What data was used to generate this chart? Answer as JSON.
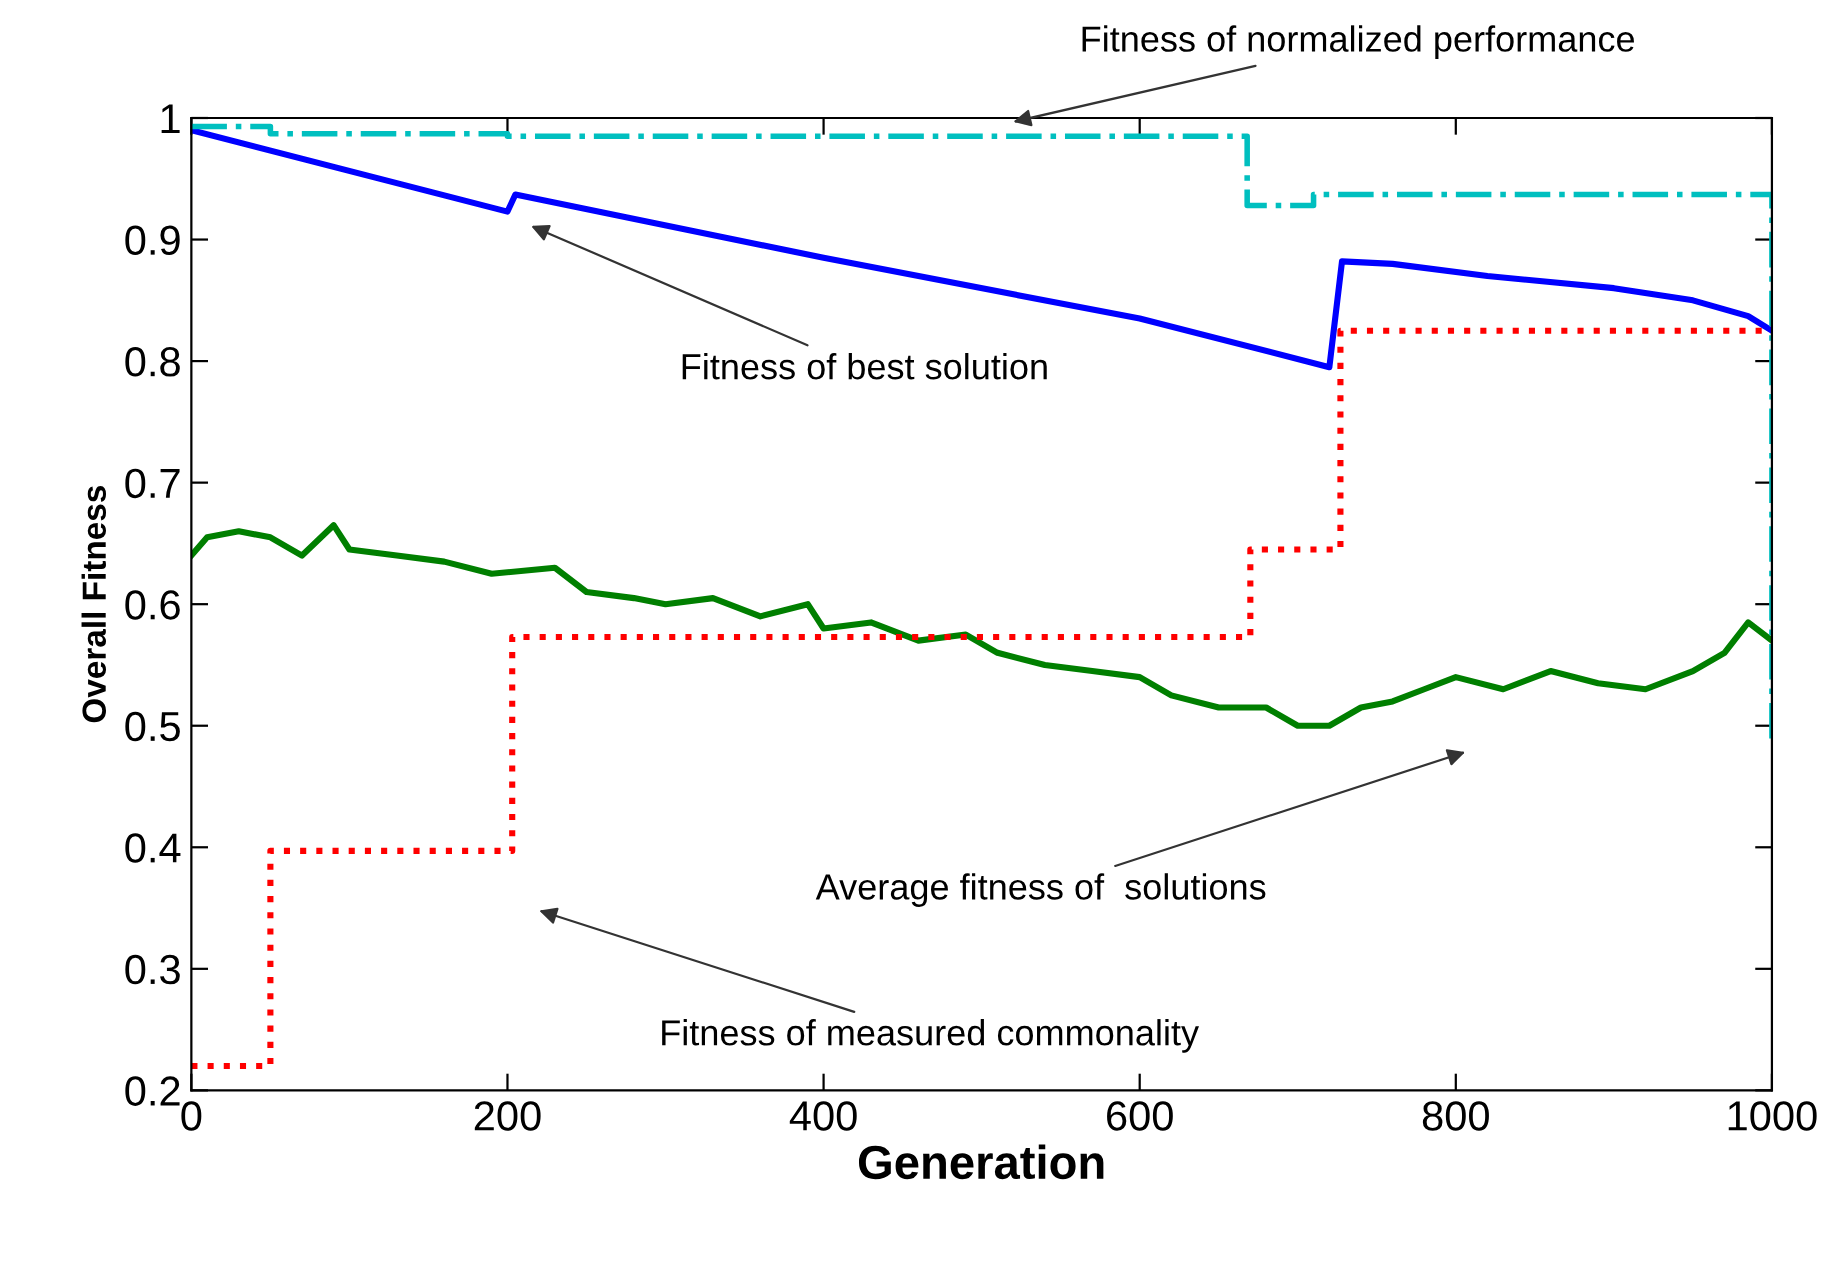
{
  "chart_data": {
    "type": "line",
    "xlabel": "Generation",
    "ylabel": "Overall Fitness",
    "xlim": [
      0,
      1000
    ],
    "ylim": [
      0.2,
      1
    ],
    "xticks": [
      0,
      200,
      400,
      600,
      800,
      1000
    ],
    "yticks": [
      0.2,
      0.3,
      0.4,
      0.5,
      0.6,
      0.7,
      0.8,
      0.9,
      1
    ],
    "grid": false,
    "series": [
      {
        "color": "#0000ff",
        "line_style": "solid",
        "x": [
          0,
          200,
          205,
          400,
          600,
          720,
          728,
          760,
          820,
          900,
          950,
          985,
          1000
        ],
        "values": [
          0.99,
          0.923,
          0.937,
          0.885,
          0.835,
          0.795,
          0.882,
          0.88,
          0.87,
          0.86,
          0.85,
          0.837,
          0.825
        ]
      },
      {
        "color": "#007f00",
        "line_style": "solid",
        "x": [
          0,
          10,
          30,
          50,
          70,
          90,
          100,
          130,
          160,
          190,
          230,
          250,
          280,
          300,
          330,
          360,
          390,
          400,
          430,
          460,
          490,
          510,
          540,
          570,
          600,
          620,
          650,
          680,
          700,
          720,
          740,
          760,
          780,
          800,
          830,
          860,
          890,
          920,
          950,
          970,
          985,
          1000
        ],
        "values": [
          0.64,
          0.655,
          0.66,
          0.655,
          0.64,
          0.665,
          0.645,
          0.64,
          0.635,
          0.625,
          0.63,
          0.61,
          0.605,
          0.6,
          0.605,
          0.59,
          0.6,
          0.58,
          0.585,
          0.57,
          0.575,
          0.56,
          0.55,
          0.545,
          0.54,
          0.525,
          0.515,
          0.515,
          0.5,
          0.5,
          0.515,
          0.52,
          0.53,
          0.54,
          0.53,
          0.545,
          0.535,
          0.53,
          0.545,
          0.56,
          0.585,
          0.57
        ]
      },
      {
        "type": "step",
        "color": "#ff0000",
        "line_style": "dotted",
        "x": [
          0,
          50,
          203,
          670,
          727,
          1000
        ],
        "values": [
          0.22,
          0.397,
          0.573,
          0.645,
          0.825,
          0.825
        ]
      },
      {
        "type": "step",
        "color": "#00bfbf",
        "line_style": "dashdot",
        "x": [
          0,
          50,
          200,
          668,
          710,
          1000,
          1000
        ],
        "values": [
          0.993,
          0.987,
          0.985,
          0.928,
          0.937,
          0.937,
          0.485
        ]
      }
    ],
    "annotations": [
      "Fitness of normalized performance",
      "Fitness of best solution",
      "Average fitness of  solutions",
      "Fitness of measured commonality"
    ]
  }
}
